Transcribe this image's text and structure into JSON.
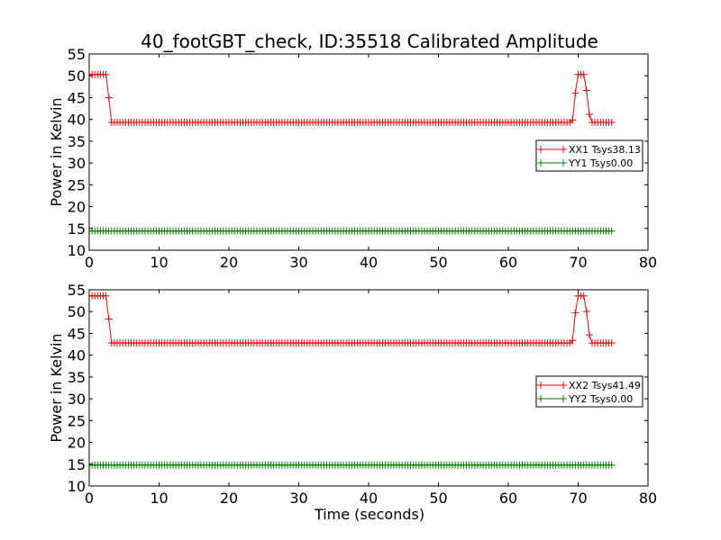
{
  "figure": {
    "title": "40_footGBT_check, ID:35518 Calibrated Amplitude",
    "xlabel": "Time (seconds)"
  },
  "chart_data": [
    {
      "type": "line",
      "ylabel": "Power in Kelvin",
      "xlim": [
        0,
        80
      ],
      "ylim": [
        10,
        55
      ],
      "xticks": [
        "0",
        "10",
        "20",
        "30",
        "40",
        "50",
        "60",
        "70",
        "80"
      ],
      "yticks": [
        "10",
        "15",
        "20",
        "25",
        "30",
        "35",
        "40",
        "45",
        "50",
        "55"
      ],
      "grid": false,
      "legend_position": "center-right",
      "series": [
        {
          "name": "XX1 Tsys38.13",
          "color": "#ff0000",
          "marker": "+",
          "points": [
            [
              0,
              50.3
            ],
            [
              2.6,
              50.3
            ],
            [
              2.8,
              45.0
            ],
            [
              3.1,
              39.3
            ],
            [
              68.8,
              39.3
            ],
            [
              69.3,
              40.0
            ],
            [
              69.6,
              46.0
            ],
            [
              70.0,
              50.3
            ],
            [
              71.0,
              50.3
            ],
            [
              71.4,
              43.0
            ],
            [
              71.8,
              39.3
            ],
            [
              74.8,
              39.3
            ]
          ]
        },
        {
          "name": "YY1 Tsys0.00",
          "color": "#008000",
          "marker": "+",
          "points": [
            [
              0,
              14.4
            ],
            [
              74.8,
              14.4
            ]
          ]
        }
      ]
    },
    {
      "type": "line",
      "ylabel": "Power in Kelvin",
      "xlabel": "Time (seconds)",
      "xlim": [
        0,
        80
      ],
      "ylim": [
        10,
        55
      ],
      "xticks": [
        "0",
        "10",
        "20",
        "30",
        "40",
        "50",
        "60",
        "70",
        "80"
      ],
      "yticks": [
        "10",
        "15",
        "20",
        "25",
        "30",
        "35",
        "40",
        "45",
        "50",
        "55"
      ],
      "grid": false,
      "legend_position": "center-right",
      "series": [
        {
          "name": "XX2 Tsys41.49",
          "color": "#ff0000",
          "marker": "+",
          "points": [
            [
              0,
              53.6
            ],
            [
              2.6,
              53.6
            ],
            [
              2.8,
              48.3
            ],
            [
              3.1,
              42.8
            ],
            [
              68.8,
              42.8
            ],
            [
              69.3,
              43.5
            ],
            [
              69.6,
              49.7
            ],
            [
              70.0,
              53.6
            ],
            [
              71.0,
              53.6
            ],
            [
              71.4,
              46.5
            ],
            [
              71.8,
              42.8
            ],
            [
              74.8,
              42.8
            ]
          ]
        },
        {
          "name": "YY2 Tsys0.00",
          "color": "#008000",
          "marker": "+",
          "points": [
            [
              0,
              14.8
            ],
            [
              74.8,
              14.8
            ]
          ]
        }
      ]
    }
  ]
}
